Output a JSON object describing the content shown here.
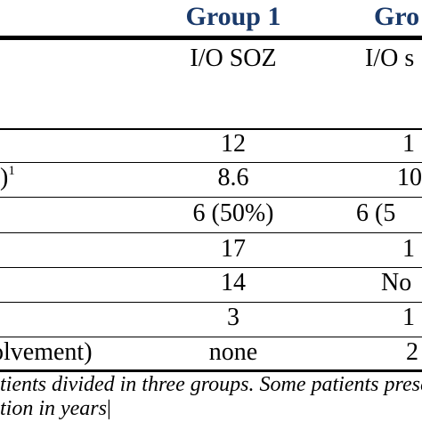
{
  "header": {
    "group1_title": "Group 1",
    "group2_title_partial": "Gro",
    "group1_subtitle": "I/O SOZ",
    "group2_subtitle_partial": "I/O s"
  },
  "rows": [
    {
      "label": "",
      "label_sup": "",
      "group1": "12",
      "group2": "1"
    },
    {
      "label": ")",
      "label_sup": "1",
      "group1": "8.6",
      "group2": "10"
    },
    {
      "label": "",
      "label_sup": "",
      "group1": "6 (50%)",
      "group2": "6 (5"
    },
    {
      "label": "",
      "label_sup": "",
      "group1": "17",
      "group2": "1"
    },
    {
      "label": "",
      "label_sup": "",
      "group1": "14",
      "group2": "No"
    },
    {
      "label": "",
      "label_sup": "",
      "group1": "3",
      "group2": "1"
    },
    {
      "label": "olvement)",
      "label_sup": "",
      "group1": "none",
      "group2": "2"
    }
  ],
  "footnote": {
    "line1": "tients divided in three groups. Some patients prese",
    "line2": "tion in years"
  },
  "colors": {
    "header_text": "#1a3a6b",
    "rule": "#000000"
  }
}
